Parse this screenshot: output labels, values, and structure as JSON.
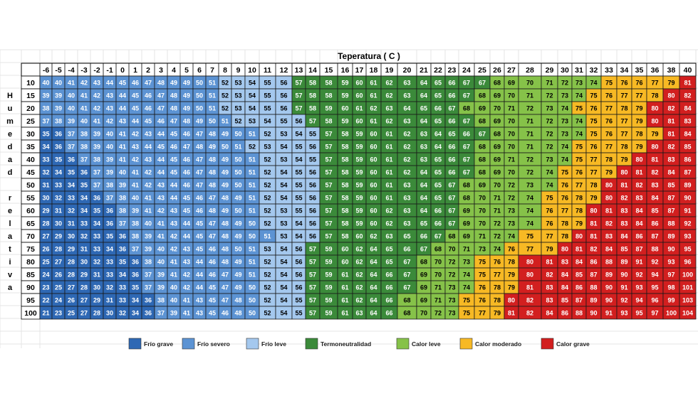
{
  "chart_data": {
    "type": "heatmap",
    "title": "Teperatura ( C )",
    "ylabel": "Humedad relativa",
    "temperatures": [
      -6,
      -5,
      -4,
      -3,
      -2,
      -1,
      0,
      1,
      2,
      3,
      4,
      5,
      6,
      7,
      8,
      9,
      10,
      11,
      12,
      13,
      14,
      15,
      16,
      17,
      18,
      19,
      20,
      21,
      22,
      23,
      24,
      25,
      26,
      27,
      28,
      29,
      30,
      31,
      32,
      33,
      34,
      35,
      36,
      38,
      40
    ],
    "humidities": [
      10,
      15,
      20,
      25,
      30,
      35,
      40,
      45,
      50,
      55,
      60,
      65,
      70,
      75,
      80,
      85,
      90,
      95,
      100
    ],
    "values": [
      [
        40,
        40,
        41,
        42,
        43,
        44,
        45,
        46,
        47,
        48,
        49,
        49,
        50,
        51,
        52,
        53,
        54,
        55,
        56,
        57,
        58,
        58,
        59,
        60,
        61,
        62,
        63,
        64,
        65,
        66,
        67,
        67,
        68,
        69,
        70,
        71,
        72,
        73,
        74,
        75,
        76,
        76,
        77,
        79,
        81
      ],
      [
        39,
        39,
        40,
        41,
        42,
        43,
        44,
        45,
        46,
        47,
        48,
        49,
        50,
        51,
        52,
        53,
        54,
        55,
        56,
        57,
        58,
        58,
        59,
        60,
        61,
        62,
        63,
        64,
        65,
        66,
        67,
        68,
        69,
        70,
        71,
        72,
        73,
        74,
        75,
        76,
        77,
        77,
        78,
        80,
        82
      ],
      [
        38,
        39,
        40,
        41,
        42,
        43,
        44,
        45,
        46,
        47,
        48,
        49,
        50,
        51,
        52,
        53,
        54,
        55,
        56,
        57,
        58,
        59,
        60,
        61,
        62,
        63,
        64,
        65,
        66,
        67,
        68,
        69,
        70,
        71,
        72,
        73,
        74,
        75,
        76,
        77,
        78,
        79,
        80,
        82,
        84
      ],
      [
        37,
        38,
        39,
        40,
        41,
        42,
        43,
        44,
        45,
        46,
        47,
        48,
        49,
        50,
        51,
        52,
        53,
        54,
        55,
        56,
        57,
        58,
        59,
        60,
        61,
        62,
        63,
        64,
        65,
        66,
        67,
        68,
        69,
        70,
        71,
        72,
        73,
        74,
        75,
        76,
        77,
        79,
        80,
        81,
        83
      ],
      [
        35,
        36,
        37,
        38,
        39,
        40,
        41,
        42,
        43,
        44,
        45,
        46,
        47,
        48,
        49,
        50,
        51,
        52,
        53,
        54,
        55,
        57,
        58,
        59,
        60,
        61,
        62,
        63,
        64,
        65,
        66,
        67,
        68,
        70,
        71,
        72,
        73,
        74,
        75,
        76,
        77,
        78,
        79,
        81,
        84
      ],
      [
        34,
        36,
        37,
        38,
        39,
        40,
        41,
        43,
        44,
        45,
        46,
        47,
        48,
        49,
        50,
        51,
        52,
        53,
        54,
        55,
        56,
        57,
        58,
        59,
        60,
        61,
        62,
        63,
        64,
        66,
        67,
        68,
        69,
        70,
        71,
        72,
        74,
        75,
        76,
        77,
        78,
        79,
        80,
        82,
        85
      ],
      [
        33,
        35,
        36,
        37,
        38,
        39,
        41,
        42,
        43,
        44,
        45,
        46,
        47,
        48,
        49,
        50,
        51,
        52,
        53,
        54,
        55,
        57,
        58,
        59,
        60,
        61,
        62,
        63,
        65,
        66,
        67,
        68,
        69,
        71,
        72,
        73,
        74,
        75,
        77,
        78,
        79,
        80,
        81,
        83,
        86
      ],
      [
        32,
        34,
        35,
        36,
        37,
        39,
        40,
        41,
        42,
        44,
        45,
        46,
        47,
        48,
        49,
        50,
        51,
        52,
        54,
        55,
        56,
        57,
        58,
        59,
        60,
        61,
        62,
        64,
        65,
        66,
        67,
        68,
        69,
        70,
        72,
        74,
        75,
        76,
        77,
        79,
        80,
        81,
        82,
        84,
        87
      ],
      [
        31,
        33,
        34,
        35,
        37,
        38,
        39,
        41,
        42,
        43,
        44,
        46,
        47,
        48,
        49,
        50,
        51,
        52,
        54,
        55,
        56,
        57,
        58,
        59,
        60,
        61,
        63,
        64,
        65,
        67,
        68,
        69,
        70,
        72,
        73,
        74,
        76,
        77,
        78,
        80,
        81,
        82,
        83,
        85,
        89
      ],
      [
        30,
        32,
        33,
        34,
        36,
        37,
        38,
        40,
        41,
        43,
        44,
        45,
        46,
        47,
        48,
        49,
        51,
        52,
        54,
        55,
        56,
        57,
        58,
        59,
        60,
        61,
        63,
        64,
        65,
        67,
        68,
        70,
        71,
        72,
        74,
        75,
        76,
        78,
        79,
        80,
        82,
        83,
        84,
        87,
        90
      ],
      [
        29,
        31,
        32,
        34,
        35,
        36,
        38,
        39,
        41,
        42,
        43,
        45,
        46,
        48,
        49,
        50,
        51,
        52,
        53,
        55,
        56,
        57,
        58,
        59,
        60,
        62,
        63,
        64,
        66,
        67,
        69,
        70,
        71,
        73,
        74,
        76,
        77,
        78,
        80,
        81,
        83,
        84,
        85,
        87,
        91
      ],
      [
        28,
        30,
        31,
        33,
        34,
        36,
        37,
        38,
        40,
        41,
        43,
        44,
        45,
        47,
        48,
        49,
        50,
        52,
        53,
        54,
        56,
        57,
        58,
        59,
        60,
        62,
        63,
        65,
        66,
        67,
        69,
        70,
        72,
        73,
        74,
        76,
        78,
        79,
        81,
        82,
        83,
        84,
        86,
        88,
        92
      ],
      [
        27,
        29,
        30,
        32,
        33,
        35,
        36,
        38,
        39,
        41,
        42,
        44,
        45,
        47,
        48,
        49,
        50,
        51,
        53,
        54,
        56,
        57,
        58,
        60,
        62,
        63,
        65,
        66,
        67,
        68,
        69,
        71,
        72,
        74,
        75,
        77,
        78,
        80,
        81,
        83,
        84,
        86,
        87,
        89,
        93
      ],
      [
        26,
        28,
        29,
        31,
        33,
        34,
        36,
        37,
        39,
        40,
        42,
        43,
        45,
        46,
        48,
        50,
        51,
        53,
        54,
        56,
        57,
        59,
        60,
        62,
        64,
        65,
        66,
        67,
        68,
        70,
        71,
        73,
        74,
        76,
        77,
        79,
        80,
        81,
        82,
        84,
        85,
        87,
        88,
        90,
        95
      ],
      [
        25,
        27,
        28,
        30,
        32,
        33,
        35,
        36,
        38,
        40,
        41,
        43,
        44,
        46,
        48,
        49,
        51,
        52,
        54,
        56,
        57,
        59,
        60,
        62,
        64,
        65,
        67,
        68,
        70,
        72,
        73,
        75,
        76,
        78,
        80,
        81,
        83,
        84,
        86,
        88,
        89,
        91,
        92,
        93,
        96
      ],
      [
        24,
        26,
        28,
        29,
        31,
        33,
        34,
        36,
        37,
        39,
        41,
        42,
        44,
        46,
        47,
        49,
        51,
        52,
        54,
        56,
        57,
        59,
        61,
        62,
        64,
        66,
        67,
        69,
        70,
        72,
        74,
        75,
        77,
        79,
        80,
        82,
        84,
        85,
        87,
        89,
        90,
        92,
        94,
        97,
        100
      ],
      [
        23,
        25,
        27,
        28,
        30,
        32,
        33,
        35,
        37,
        39,
        40,
        42,
        44,
        45,
        47,
        49,
        50,
        52,
        54,
        56,
        57,
        59,
        61,
        62,
        64,
        66,
        67,
        69,
        71,
        73,
        74,
        76,
        78,
        79,
        81,
        83,
        84,
        86,
        88,
        90,
        91,
        93,
        95,
        98,
        101
      ],
      [
        22,
        24,
        26,
        27,
        29,
        31,
        33,
        34,
        36,
        38,
        40,
        41,
        43,
        45,
        47,
        48,
        50,
        52,
        54,
        55,
        57,
        59,
        61,
        62,
        64,
        66,
        68,
        69,
        71,
        73,
        75,
        76,
        78,
        80,
        82,
        83,
        85,
        87,
        89,
        90,
        92,
        94,
        96,
        99,
        103
      ],
      [
        21,
        23,
        25,
        27,
        28,
        30,
        32,
        34,
        36,
        37,
        39,
        41,
        43,
        45,
        46,
        48,
        50,
        52,
        54,
        55,
        57,
        59,
        61,
        63,
        64,
        66,
        68,
        70,
        72,
        73,
        75,
        77,
        79,
        81,
        82,
        84,
        86,
        88,
        90,
        91,
        93,
        95,
        97,
        100,
        104
      ]
    ],
    "categories": [
      {
        "name": "Frío grave",
        "color": "#2e68b4",
        "max": 36
      },
      {
        "name": "Frío severo",
        "color": "#5c93d3",
        "max": 51
      },
      {
        "name": "Frío leve",
        "color": "#a4c8ee",
        "max": 56
      },
      {
        "name": "Termoneutralidad",
        "color": "#3b8a3a",
        "max": 67
      },
      {
        "name": "Calor leve",
        "color": "#86c249",
        "max": 74
      },
      {
        "name": "Calor moderado",
        "color": "#f7b924",
        "max": 79
      },
      {
        "name": "Calor grave",
        "color": "#d21f1f",
        "max": 200
      }
    ],
    "legend": "bottom"
  }
}
